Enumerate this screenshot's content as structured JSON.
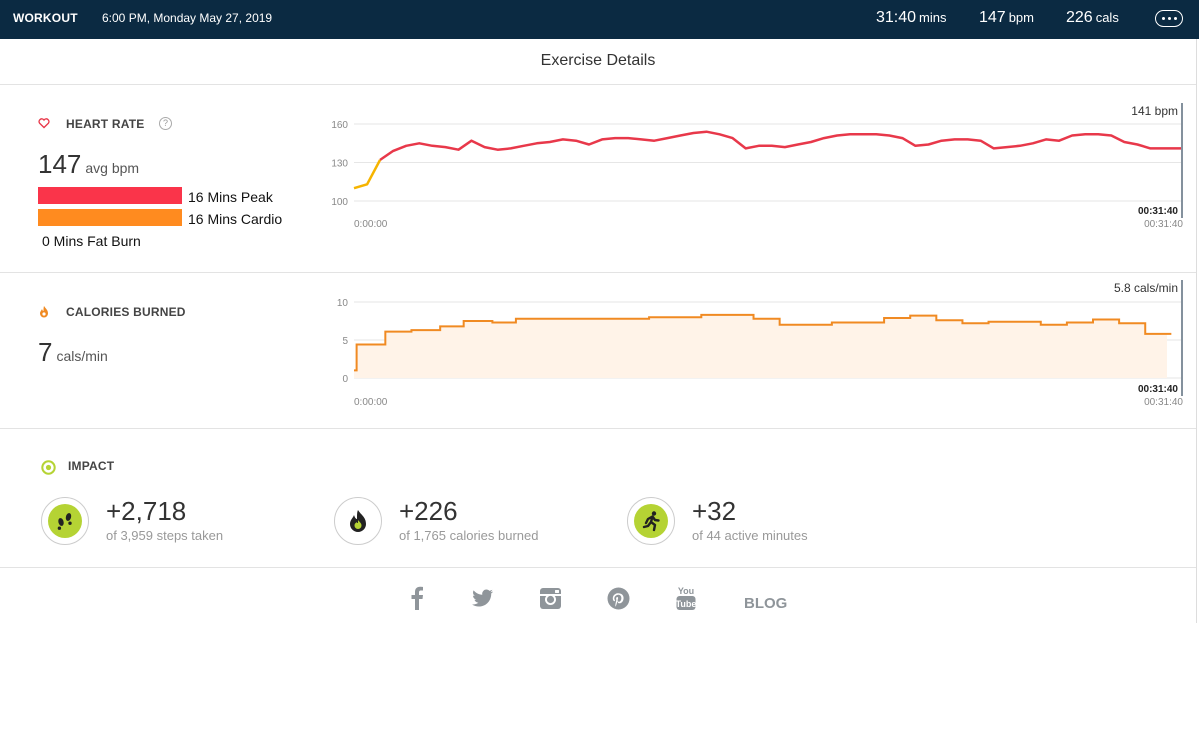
{
  "header": {
    "title": "WORKOUT",
    "datetime": "6:00 PM, Monday May 27, 2019",
    "duration_value": "31:40",
    "duration_unit": "mins",
    "bpm_value": "147",
    "bpm_unit": "bpm",
    "cals_value": "226",
    "cals_unit": "cals",
    "more_icon": "ellipsis-icon"
  },
  "page_title": "Exercise Details",
  "heart_rate": {
    "label": "HEART RATE",
    "help_icon": "question-icon",
    "icon": "heart-icon",
    "avg_value": "147",
    "avg_unit": "avg bpm",
    "zones": [
      {
        "label": "16 Mins Peak",
        "color": "#fa344a"
      },
      {
        "label": "16 Mins Cardio",
        "color": "#ff8b1f"
      },
      {
        "label": "0 Mins Fat Burn",
        "color": "#f6b400"
      }
    ]
  },
  "calories": {
    "label": "CALORIES BURNED",
    "icon": "flame-icon",
    "value": "7",
    "unit": "cals/min"
  },
  "impact": {
    "label": "IMPACT",
    "icon": "target-icon",
    "items": [
      {
        "value": "+2,718",
        "sub": "of 3,959 steps taken",
        "icon": "footsteps-icon"
      },
      {
        "value": "+226",
        "sub": "of 1,765 calories burned",
        "icon": "flame-icon"
      },
      {
        "value": "+32",
        "sub": "of 44 active minutes",
        "icon": "runner-icon"
      }
    ]
  },
  "footer": {
    "social": [
      "facebook-icon",
      "twitter-icon",
      "instagram-icon",
      "pinterest-icon",
      "youtube-icon"
    ],
    "blog_label": "BLOG"
  },
  "chart_data": [
    {
      "type": "line",
      "name": "heart-rate",
      "ylim": [
        100,
        160
      ],
      "yticks": [
        "160",
        "130",
        "100"
      ],
      "x_start_label": "0:00:00",
      "x_end_label": "00:31:40",
      "cursor_time": "00:31:40",
      "cursor_label": "141 bpm",
      "colors": {
        "line": "#e8384a",
        "start": "#f6b400"
      },
      "x": [
        0,
        0.5,
        1,
        1.5,
        2,
        2.5,
        3,
        3.5,
        4,
        4.5,
        5,
        5.5,
        6,
        6.5,
        7,
        7.5,
        8,
        8.5,
        9,
        9.5,
        10,
        10.5,
        11,
        11.5,
        12,
        12.5,
        13,
        13.5,
        14,
        14.5,
        15,
        15.5,
        16,
        16.5,
        17,
        17.5,
        18,
        18.5,
        19,
        19.5,
        20,
        20.5,
        21,
        21.5,
        22,
        22.5,
        23,
        23.5,
        24,
        24.5,
        25,
        25.5,
        26,
        26.5,
        27,
        27.5,
        28,
        28.5,
        29,
        29.5,
        30,
        30.5,
        31,
        31.67
      ],
      "y": [
        110,
        113,
        132,
        139,
        143,
        145,
        143,
        142,
        140,
        147,
        142,
        140,
        141,
        143,
        145,
        146,
        148,
        147,
        144,
        148,
        149,
        149,
        148,
        147,
        149,
        151,
        153,
        154,
        152,
        149,
        141,
        143,
        143,
        142,
        144,
        146,
        149,
        151,
        152,
        152,
        152,
        151,
        149,
        143,
        144,
        147,
        148,
        148,
        147,
        141,
        142,
        143,
        145,
        148,
        147,
        151,
        152,
        152,
        151,
        146,
        144,
        141,
        141,
        141
      ]
    },
    {
      "type": "area",
      "name": "calories",
      "ylim": [
        0,
        10
      ],
      "yticks": [
        "10",
        "5",
        "0"
      ],
      "x_start_label": "0:00:00",
      "x_end_label": "00:31:40",
      "cursor_time": "00:31:40",
      "cursor_label": "5.8 cals/min",
      "colors": {
        "line": "#f08a22",
        "fill": "#fff3e8"
      },
      "steps": [
        {
          "t": 0,
          "v": 1
        },
        {
          "t": 0.1,
          "v": 4.4
        },
        {
          "t": 1.2,
          "v": 6.1
        },
        {
          "t": 2.2,
          "v": 6.3
        },
        {
          "t": 3.3,
          "v": 6.8
        },
        {
          "t": 4.2,
          "v": 7.5
        },
        {
          "t": 5.3,
          "v": 7.3
        },
        {
          "t": 6.2,
          "v": 7.8
        },
        {
          "t": 11.3,
          "v": 8.0
        },
        {
          "t": 13.3,
          "v": 8.3
        },
        {
          "t": 15.3,
          "v": 7.8
        },
        {
          "t": 16.3,
          "v": 7.0
        },
        {
          "t": 18.3,
          "v": 7.3
        },
        {
          "t": 20.3,
          "v": 7.9
        },
        {
          "t": 21.3,
          "v": 8.2
        },
        {
          "t": 22.3,
          "v": 7.6
        },
        {
          "t": 23.3,
          "v": 7.2
        },
        {
          "t": 24.3,
          "v": 7.4
        },
        {
          "t": 26.3,
          "v": 7.0
        },
        {
          "t": 27.3,
          "v": 7.3
        },
        {
          "t": 28.3,
          "v": 7.7
        },
        {
          "t": 29.3,
          "v": 7.2
        },
        {
          "t": 30.3,
          "v": 5.8
        },
        {
          "t": 31.3,
          "v": 5.8
        }
      ]
    }
  ]
}
